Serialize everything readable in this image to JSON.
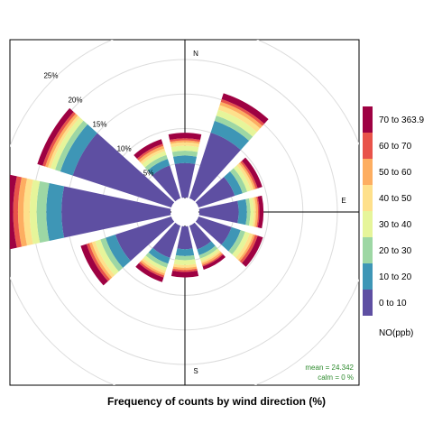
{
  "chart_data": {
    "type": "wind-rose",
    "title": "",
    "xlabel": "Frequency of counts by wind direction (%)",
    "legend_title": "NO(ppb)",
    "legend_position": "right",
    "grid": true,
    "radial_ticks": [
      5,
      10,
      15,
      20,
      25
    ],
    "radial_tick_labels": [
      "5%",
      "10%",
      "15%",
      "20%",
      "25%"
    ],
    "compass_labels": {
      "N": "N",
      "E": "E",
      "S": "S"
    },
    "categories": [
      "0 to 10",
      "10 to 20",
      "20 to 30",
      "30 to 40",
      "40 to 50",
      "50 to 60",
      "60 to 70",
      "70 to 363.9"
    ],
    "colors": [
      "#5e4fa2",
      "#3288bd",
      "#66c2a5",
      "#abdda4",
      "#e6f598",
      "#fee08b",
      "#fdae61",
      "#f46d43",
      "#d53e4f",
      "#9e0142"
    ],
    "series_colors": [
      "#5e4fa2",
      "#3e96b6",
      "#9dd7a4",
      "#e6f59a",
      "#fee08b",
      "#fdae61",
      "#e8534a",
      "#9e0142"
    ],
    "directions": [
      0,
      30,
      60,
      90,
      120,
      150,
      180,
      210,
      240,
      270,
      300,
      330
    ],
    "cumulative": [
      [
        5.0,
        6.1,
        6.8,
        7.5,
        8.0,
        8.3,
        8.6,
        9.4
      ],
      [
        10.0,
        11.8,
        12.6,
        13.5,
        14.2,
        14.7,
        15.1,
        16.0
      ],
      [
        5.5,
        6.7,
        7.4,
        8.0,
        8.4,
        8.7,
        9.0,
        9.7
      ],
      [
        5.7,
        6.9,
        7.4,
        7.9,
        8.2,
        8.5,
        8.7,
        9.3
      ],
      [
        5.0,
        6.4,
        7.1,
        7.8,
        8.3,
        8.6,
        9.0,
        9.8
      ],
      [
        3.6,
        4.5,
        5.0,
        5.4,
        5.7,
        6.0,
        6.2,
        6.7
      ],
      [
        3.3,
        4.3,
        4.9,
        5.6,
        6.0,
        6.3,
        6.6,
        7.4
      ],
      [
        4.9,
        5.8,
        6.4,
        6.9,
        7.3,
        7.6,
        7.9,
        8.6
      ],
      [
        8.5,
        10.0,
        10.8,
        11.6,
        12.1,
        12.5,
        12.9,
        13.8
      ],
      [
        15.8,
        18.0,
        19.4,
        20.4,
        21.3,
        22.1,
        22.8,
        24.0
      ],
      [
        15.0,
        16.9,
        17.7,
        18.4,
        18.8,
        19.2,
        19.6,
        20.4
      ],
      [
        5.0,
        6.0,
        6.6,
        7.2,
        7.6,
        8.0,
        8.3,
        9.0
      ]
    ],
    "stats": {
      "mean": "mean = 24.342",
      "calm": "calm = 0 %"
    }
  }
}
